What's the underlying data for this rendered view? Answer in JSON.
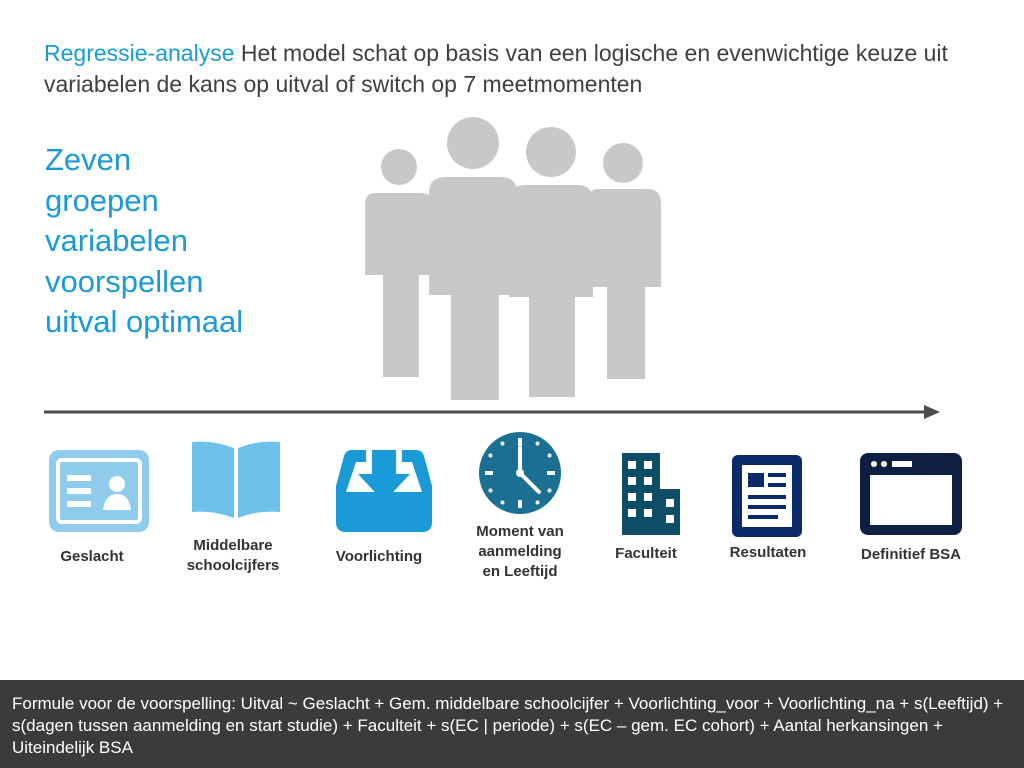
{
  "heading": {
    "accent": "Regressie-analyse",
    "text": " Het model schat op basis van een logische en evenwichtige keuze uit variabelen de kans op uitval of switch op 7 meetmomenten"
  },
  "headline_lines": [
    "Zeven",
    "groepen",
    "variabelen",
    "voorspellen",
    "uitval optimaal"
  ],
  "icons": [
    {
      "label": "Geslacht",
      "icon": "id-card-icon",
      "color": "#8fcbec"
    },
    {
      "label": "Middelbare\nschoolcijfers",
      "icon": "open-book-icon",
      "color": "#6ec1ea"
    },
    {
      "label": "Voorlichting",
      "icon": "download-tray-icon",
      "color": "#1a9ad6"
    },
    {
      "label": "Moment van\naanmelding\nen Leeftijd",
      "icon": "clock-icon",
      "color": "#1b6f93"
    },
    {
      "label": "Faculteit",
      "icon": "building-icon",
      "color": "#0f4d66"
    },
    {
      "label": "Resultaten",
      "icon": "document-icon",
      "color": "#0a2a6a"
    },
    {
      "label": "Definitief BSA",
      "icon": "browser-window-icon",
      "color": "#0f1f44"
    }
  ],
  "formula": "Formule voor de voorspelling: Uitval ~ Geslacht + Gem. middelbare schoolcijfer + Voorlichting_voor + Voorlichting_na + s(Leeftijd) + s(dagen tussen aanmelding en start studie) + Faculteit + s(EC | periode) + s(EC – gem. EC cohort) + Aantal herkansingen + Uiteindelijk BSA"
}
